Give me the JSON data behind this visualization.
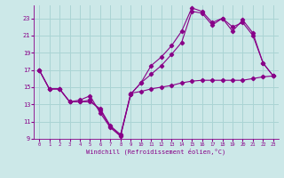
{
  "xlabel": "Windchill (Refroidissement éolien,°C)",
  "bg_color": "#cce8e8",
  "grid_color": "#aad4d4",
  "line_color": "#880088",
  "xlim": [
    -0.5,
    23.5
  ],
  "ylim": [
    9,
    24.5
  ],
  "xticks": [
    0,
    1,
    2,
    3,
    4,
    5,
    6,
    7,
    8,
    9,
    10,
    11,
    12,
    13,
    14,
    15,
    16,
    17,
    18,
    19,
    20,
    21,
    22,
    23
  ],
  "yticks": [
    9,
    11,
    13,
    15,
    17,
    19,
    21,
    23
  ],
  "line1_x": [
    0,
    1,
    2,
    3,
    4,
    5,
    6,
    7,
    8,
    9,
    10,
    11,
    12,
    13,
    14,
    15,
    16,
    17,
    18,
    19,
    20,
    21,
    22,
    23
  ],
  "line1_y": [
    17.0,
    14.8,
    14.8,
    13.3,
    13.3,
    13.3,
    12.5,
    10.5,
    9.5,
    14.3,
    14.5,
    14.8,
    15.0,
    15.2,
    15.5,
    15.7,
    15.8,
    15.8,
    15.8,
    15.8,
    15.8,
    16.0,
    16.2,
    16.3
  ],
  "line2_x": [
    0,
    1,
    2,
    3,
    4,
    5,
    6,
    7,
    8,
    9,
    10,
    11,
    12,
    13,
    14,
    15,
    16,
    17,
    18,
    19,
    20,
    21,
    22,
    23
  ],
  "line2_y": [
    17.0,
    14.8,
    14.8,
    13.3,
    13.5,
    14.0,
    12.0,
    10.3,
    9.3,
    14.2,
    15.5,
    17.5,
    18.5,
    19.8,
    21.5,
    24.2,
    23.8,
    22.5,
    23.0,
    21.5,
    22.8,
    21.3,
    17.8,
    16.3
  ],
  "line3_x": [
    0,
    1,
    2,
    3,
    4,
    5,
    6,
    7,
    8,
    9,
    10,
    11,
    12,
    13,
    14,
    15,
    16,
    17,
    18,
    19,
    20,
    21,
    22,
    23
  ],
  "line3_y": [
    17.0,
    14.8,
    14.8,
    13.3,
    13.3,
    13.5,
    12.3,
    10.4,
    9.4,
    14.2,
    15.5,
    16.5,
    17.5,
    18.8,
    20.2,
    23.8,
    23.6,
    22.2,
    23.0,
    22.0,
    22.5,
    21.0,
    17.8,
    16.3
  ]
}
